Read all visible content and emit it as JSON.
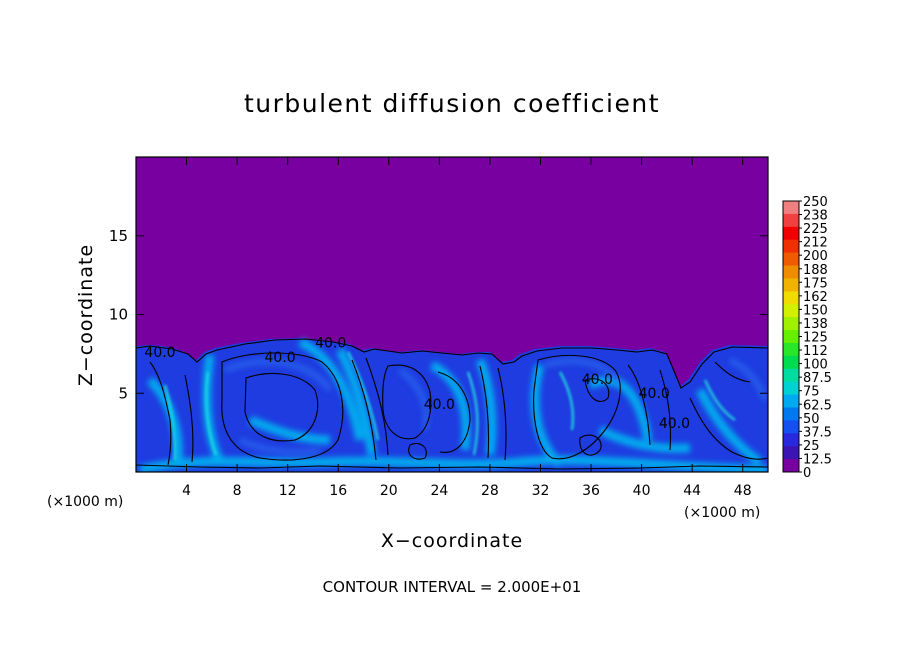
{
  "chart_data": {
    "type": "heatmap",
    "title": "turbulent diffusion coefficient",
    "xlabel": "X−coordinate",
    "ylabel": "Z−coordinate",
    "x_unit_left": "(×1000 m)",
    "x_unit_right": "(×1000 m)",
    "xlim": [
      0,
      50
    ],
    "ylim": [
      0,
      20
    ],
    "x_ticks": [
      4,
      8,
      12,
      16,
      20,
      24,
      28,
      32,
      36,
      40,
      44,
      48
    ],
    "x_tick_labels": [
      "4",
      "8",
      "12",
      "16",
      "20",
      "24",
      "28",
      "32",
      "36",
      "40",
      "44",
      "48"
    ],
    "y_ticks": [
      5,
      10,
      15
    ],
    "y_tick_labels": [
      "5",
      "10",
      "15"
    ],
    "footer": "CONTOUR INTERVAL = 2.000E+01",
    "contour_labels": [
      {
        "text": "40.0",
        "x": 1.9,
        "z": 7.3
      },
      {
        "text": "40.0",
        "x": 11.4,
        "z": 7.0
      },
      {
        "text": "40.0",
        "x": 15.4,
        "z": 7.9
      },
      {
        "text": "40.0",
        "x": 24.0,
        "z": 4.0
      },
      {
        "text": "40.0",
        "x": 36.5,
        "z": 5.6
      },
      {
        "text": "40.0",
        "x": 41.0,
        "z": 4.7
      },
      {
        "text": "40.0",
        "x": 42.6,
        "z": 2.8
      }
    ],
    "colorbar": {
      "labels": [
        "250",
        "238",
        "225",
        "212",
        "200",
        "188",
        "175",
        "162",
        "150",
        "138",
        "125",
        "112",
        "100",
        "87.5",
        "75",
        "62.5",
        "50",
        "37.5",
        "25",
        "12.5",
        "0"
      ],
      "colors": [
        "#f08080",
        "#f04040",
        "#f00000",
        "#f03000",
        "#f05a00",
        "#f08c00",
        "#f0b400",
        "#f0dc00",
        "#d2f000",
        "#a0f000",
        "#64f000",
        "#28e628",
        "#00dc50",
        "#00dca0",
        "#00d2d2",
        "#00aaf0",
        "#0078f0",
        "#1450f0",
        "#2828dc",
        "#3c14b4",
        "#7800a0"
      ]
    },
    "colors": {
      "background_field": "#7800a0",
      "turbulent_layer": "#1e3ce0",
      "high_values": "#00c8f0",
      "contour": "#000000"
    }
  }
}
